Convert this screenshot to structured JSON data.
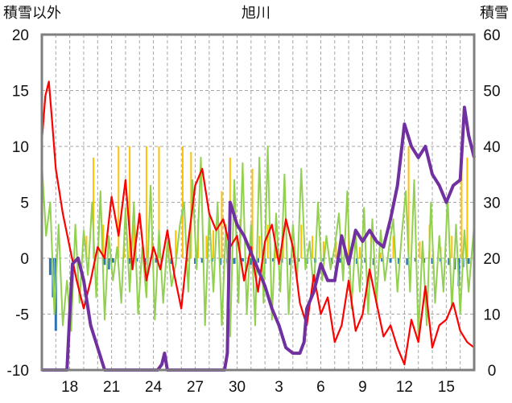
{
  "chart_data": {
    "type": "line",
    "title": "旭川",
    "y_left_label": "積雪以外",
    "y_right_label": "積雪",
    "y_left_range": [
      -10,
      20
    ],
    "y_right_range": [
      0,
      60
    ],
    "y_left_ticks": [
      "20",
      "15",
      "10",
      "5",
      "0",
      "-5",
      "-10"
    ],
    "y_right_ticks": [
      "60",
      "50",
      "40",
      "30",
      "20",
      "10",
      "0"
    ],
    "x_range": [
      0,
      31
    ],
    "x_tick_labels": [
      {
        "x": 2,
        "label": "18"
      },
      {
        "x": 5,
        "label": "21"
      },
      {
        "x": 8,
        "label": "24"
      },
      {
        "x": 11,
        "label": "27"
      },
      {
        "x": 14,
        "label": "30"
      },
      {
        "x": 17,
        "label": "3"
      },
      {
        "x": 20,
        "label": "6"
      },
      {
        "x": 23,
        "label": "9"
      },
      {
        "x": 26,
        "label": "12"
      },
      {
        "x": 29,
        "label": "15"
      }
    ],
    "grid": true,
    "colors": {
      "temperature": "#ff0000",
      "sunshine": "#ffc000",
      "dew": "#92d050",
      "precip": "#2e75b6",
      "snow_depth": "#7030a0"
    },
    "series": [
      {
        "key": "temperature",
        "axis": "left",
        "x": [
          0,
          0.25,
          0.5,
          0.75,
          1,
          1.5,
          2,
          2.5,
          3,
          3.5,
          4,
          4.5,
          5,
          5.5,
          6,
          6.5,
          7,
          7.5,
          8,
          8.5,
          9,
          9.5,
          10,
          10.5,
          11,
          11.5,
          12,
          12.5,
          13,
          13.5,
          14,
          14.5,
          15,
          15.5,
          16,
          16.5,
          17,
          17.5,
          18,
          18.5,
          19,
          19.5,
          20,
          20.5,
          21,
          21.5,
          22,
          22.5,
          23,
          23.5,
          24,
          24.5,
          25,
          25.5,
          26,
          26.5,
          27,
          27.5,
          28,
          28.5,
          29,
          29.5,
          30,
          30.5,
          31
        ],
        "values": [
          10.5,
          14.5,
          15.8,
          12.0,
          8.0,
          4.0,
          1.0,
          -2.0,
          -4.5,
          -2.0,
          1.0,
          0.0,
          5.5,
          2.0,
          7.0,
          -1.0,
          4.0,
          -2.0,
          1.0,
          -1.0,
          2.5,
          -1.5,
          -4.5,
          1.5,
          6.5,
          8.0,
          4.0,
          2.5,
          3.5,
          1.0,
          2.0,
          -2.0,
          1.0,
          -3.0,
          1.5,
          3.0,
          -0.5,
          3.5,
          1.0,
          -4.0,
          -6.0,
          -1.5,
          -5.0,
          -3.5,
          -7.5,
          -6.0,
          -2.0,
          -6.5,
          -5.0,
          -1.0,
          -4.0,
          -7.0,
          -6.0,
          -8.0,
          -9.5,
          -5.5,
          -7.5,
          -2.5,
          -8.0,
          -6.0,
          -5.5,
          -4.0,
          -6.5,
          -7.5,
          -8.0
        ]
      },
      {
        "key": "sunshine",
        "axis": "left",
        "type": "spikes",
        "x": [
          3.2,
          3.7,
          4.4,
          5.5,
          5.9,
          6.3,
          6.6,
          7.5,
          7.9,
          8.4,
          9.1,
          9.6,
          10.1,
          10.7,
          11.2,
          11.8,
          12.3,
          12.9,
          13.5,
          14.2,
          15.1,
          15.6,
          16.2,
          16.8,
          17.3,
          18.6,
          19.4,
          20.2,
          21.1,
          22.0,
          22.8,
          23.6,
          24.3,
          25.2,
          26.3,
          27.1,
          27.8,
          28.6,
          29.4,
          30.1,
          30.5
        ],
        "values": [
          2.0,
          9.0,
          3.0,
          10.0,
          1.5,
          10.0,
          3.0,
          10.0,
          2.0,
          10.0,
          1.5,
          2.5,
          10.0,
          9.5,
          3.5,
          2.0,
          2.5,
          6.0,
          9.0,
          3.5,
          8.0,
          2.0,
          3.0,
          1.0,
          2.5,
          3.0,
          2.0,
          1.5,
          1.5,
          2.5,
          1.0,
          2.0,
          0.5,
          2.0,
          10.0,
          1.5,
          3.0,
          1.0,
          2.0,
          10.0,
          9.0
        ]
      },
      {
        "key": "dew",
        "axis": "left",
        "x": [
          0,
          0.3,
          0.6,
          0.9,
          1.2,
          1.5,
          1.8,
          2.1,
          2.4,
          2.7,
          3.0,
          3.3,
          3.6,
          3.9,
          4.2,
          4.5,
          4.8,
          5.1,
          5.4,
          5.7,
          6.0,
          6.3,
          6.6,
          6.9,
          7.2,
          7.5,
          7.8,
          8.1,
          8.4,
          8.7,
          9.0,
          9.3,
          9.6,
          9.9,
          10.2,
          10.5,
          10.8,
          11.1,
          11.4,
          11.7,
          12.0,
          12.3,
          12.6,
          12.9,
          13.2,
          13.5,
          13.8,
          14.1,
          14.4,
          14.7,
          15.0,
          15.3,
          15.6,
          15.9,
          16.2,
          16.5,
          16.8,
          17.1,
          17.4,
          17.7,
          18.0,
          18.3,
          18.6,
          18.9,
          19.2,
          19.5,
          19.8,
          20.1,
          20.4,
          20.7,
          21.0,
          21.3,
          21.6,
          21.9,
          22.2,
          22.5,
          22.8,
          23.1,
          23.4,
          23.7,
          24.0,
          24.3,
          24.6,
          24.9,
          25.2,
          25.5,
          25.8,
          26.1,
          26.4,
          26.7,
          27.0,
          27.3,
          27.6,
          27.9,
          28.2,
          28.5,
          28.8,
          29.1,
          29.4,
          29.7,
          30.0,
          30.3,
          30.6,
          31.0
        ],
        "values": [
          8.5,
          2.0,
          5.0,
          -5.0,
          3.0,
          -6.0,
          -2.0,
          -6.5,
          3.0,
          -4.0,
          2.5,
          -1.5,
          5.0,
          -3.5,
          6.0,
          -5.5,
          2.0,
          -2.0,
          1.0,
          -4.0,
          4.5,
          -3.0,
          5.0,
          -5.0,
          1.0,
          -3.5,
          6.5,
          -5.5,
          2.5,
          -4.0,
          1.5,
          -2.5,
          -0.5,
          3.0,
          5.0,
          -3.0,
          7.0,
          -1.0,
          9.0,
          -6.0,
          4.0,
          -3.0,
          5.0,
          -6.0,
          3.0,
          -7.0,
          7.0,
          -4.0,
          8.5,
          -5.0,
          3.0,
          -6.0,
          9.0,
          -4.0,
          10.0,
          -5.5,
          4.0,
          -3.0,
          7.5,
          -5.0,
          3.0,
          -2.0,
          8.0,
          -1.0,
          1.5,
          -3.0,
          5.0,
          -2.0,
          2.0,
          -1.0,
          1.0,
          4.0,
          -2.0,
          6.0,
          -4.5,
          2.0,
          -3.0,
          4.5,
          -5.0,
          3.5,
          -4.0,
          2.5,
          -2.0,
          1.0,
          3.5,
          -3.0,
          2.0,
          6.0,
          -3.0,
          7.0,
          -7.0,
          1.5,
          -6.0,
          5.0,
          -4.0,
          2.0,
          -3.0,
          5.5,
          -4.5,
          3.0,
          -5.0,
          2.5,
          -3.0,
          3.0
        ]
      },
      {
        "key": "precip",
        "axis": "left",
        "type": "bars",
        "x": [
          0.6,
          0.8,
          1.0,
          4.5,
          4.8,
          5.1,
          6.3,
          6.8,
          7.4,
          8.2,
          8.6,
          9.3,
          10.4,
          11.0,
          11.5,
          12.2,
          12.8,
          13.3,
          13.8,
          14.4,
          15.0,
          15.5,
          16.0,
          16.6,
          17.2,
          17.8,
          18.4,
          19.0,
          19.6,
          20.2,
          20.8,
          21.4,
          22.0,
          22.6,
          23.2,
          23.8,
          24.4,
          25.0,
          25.6,
          26.2,
          26.8,
          27.4,
          28.0,
          28.6,
          29.2,
          29.6,
          29.9,
          30.2,
          30.6
        ],
        "values": [
          -1.5,
          -3.5,
          -6.5,
          -0.6,
          -1.0,
          -0.4,
          -0.5,
          -0.3,
          -0.6,
          -0.4,
          -0.3,
          -0.5,
          -0.3,
          -0.5,
          -0.4,
          -0.3,
          -0.6,
          -0.4,
          -0.5,
          -0.3,
          -0.6,
          -0.4,
          -0.5,
          -0.3,
          -0.4,
          -0.6,
          -0.3,
          -0.5,
          -0.4,
          -0.3,
          -0.5,
          -0.4,
          -0.3,
          -0.5,
          -0.4,
          -0.6,
          -0.3,
          -0.4,
          -0.5,
          -0.6,
          -0.3,
          -0.4,
          -0.5,
          -0.3,
          -0.6,
          -1.0,
          -2.5,
          -0.8,
          -0.5
        ]
      },
      {
        "key": "snow_depth",
        "axis": "right",
        "x": [
          0,
          1.8,
          2.0,
          2.2,
          2.6,
          3.0,
          3.5,
          4.0,
          4.5,
          5.0,
          5.3,
          5.6,
          6.0,
          8.3,
          8.6,
          8.8,
          9.0,
          13.1,
          13.3,
          13.5,
          14.0,
          14.5,
          15.0,
          15.5,
          16.0,
          16.5,
          17.0,
          17.5,
          18.0,
          18.5,
          18.8,
          19.0,
          19.5,
          20.0,
          20.5,
          21.0,
          21.5,
          22.0,
          22.5,
          23.0,
          23.5,
          24.0,
          24.5,
          25.0,
          25.5,
          26.0,
          26.5,
          27.0,
          27.5,
          28.0,
          28.5,
          29.0,
          29.5,
          30.0,
          30.3,
          30.6,
          31.0
        ],
        "values": [
          0,
          0,
          10,
          19,
          20,
          16,
          8,
          4,
          0,
          0,
          0,
          0,
          0,
          0,
          1,
          3,
          0,
          0,
          3,
          30,
          26,
          24,
          21,
          18,
          15,
          11,
          8,
          4,
          3,
          3,
          5,
          11,
          14,
          19,
          16,
          16,
          24,
          19,
          25,
          23,
          25,
          23,
          22,
          27,
          33,
          44,
          40,
          38,
          40,
          35,
          33,
          30,
          33,
          34,
          47,
          42,
          38
        ]
      }
    ]
  }
}
